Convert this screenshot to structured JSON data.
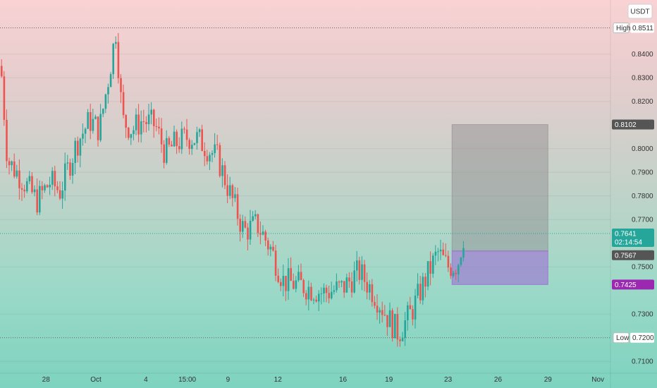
{
  "currency_label": "USDT",
  "colors": {
    "up": "#26a69a",
    "down": "#ef5350",
    "stop_zone": "#8f8a8f",
    "target_zone": "#9c64d6",
    "current_badge": "#26a69a",
    "level_badge": "#555555",
    "target_badge": "#9c27b0"
  },
  "chart_data": {
    "type": "candlestick",
    "y_range": [
      0.705,
      0.862
    ],
    "y_ticks": [
      "0.8400",
      "0.8300",
      "0.8200",
      "0.8000",
      "0.7900",
      "0.7800",
      "0.7700",
      "0.7500",
      "0.7300",
      "0.7100"
    ],
    "x_ticks": [
      "28",
      "Oct",
      "4",
      "15:00",
      "9",
      "12",
      "16",
      "19",
      "23",
      "26",
      "29",
      "Nov"
    ],
    "high": {
      "label": "High",
      "value": "0.8511"
    },
    "low": {
      "label": "Low",
      "value": "0.7200"
    },
    "current_price": {
      "value": "0.7641",
      "countdown": "02:14:54"
    },
    "position": {
      "upper": "0.8102",
      "entry": "0.7567",
      "lower": "0.7425"
    },
    "price_path": [
      [
        0.0,
        0.835
      ],
      [
        0.01,
        0.795
      ],
      [
        0.03,
        0.788
      ],
      [
        0.055,
        0.778
      ],
      [
        0.075,
        0.786
      ],
      [
        0.09,
        0.782
      ],
      [
        0.115,
        0.802
      ],
      [
        0.135,
        0.812
      ],
      [
        0.15,
        0.808
      ],
      [
        0.165,
        0.832
      ],
      [
        0.175,
        0.85
      ],
      [
        0.185,
        0.812
      ],
      [
        0.2,
        0.808
      ],
      [
        0.215,
        0.812
      ],
      [
        0.235,
        0.81
      ],
      [
        0.25,
        0.798
      ],
      [
        0.265,
        0.802
      ],
      [
        0.285,
        0.805
      ],
      [
        0.3,
        0.804
      ],
      [
        0.33,
        0.796
      ],
      [
        0.35,
        0.78
      ],
      [
        0.37,
        0.765
      ],
      [
        0.39,
        0.768
      ],
      [
        0.41,
        0.758
      ],
      [
        0.43,
        0.744
      ],
      [
        0.46,
        0.742
      ],
      [
        0.49,
        0.739
      ],
      [
        0.52,
        0.741
      ],
      [
        0.545,
        0.748
      ],
      [
        0.57,
        0.738
      ],
      [
        0.59,
        0.728
      ],
      [
        0.605,
        0.722
      ],
      [
        0.625,
        0.731
      ],
      [
        0.645,
        0.744
      ],
      [
        0.665,
        0.756
      ],
      [
        0.68,
        0.75
      ],
      [
        0.695,
        0.751
      ],
      [
        0.705,
        0.764
      ]
    ]
  }
}
